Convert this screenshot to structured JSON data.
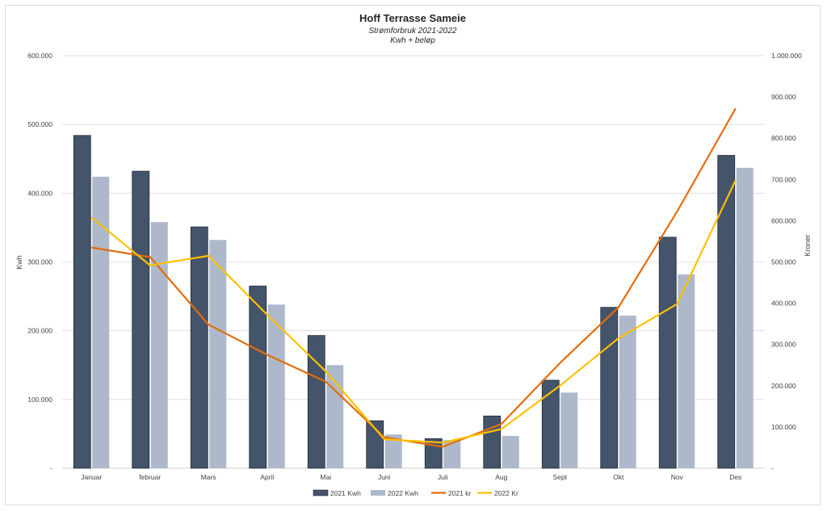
{
  "chart_data": {
    "type": "bar",
    "title": "Hoff Terrasse Sameie",
    "subtitle1": "Strømforbruk 2021-2022",
    "subtitle2": "Kwh + beløp",
    "ylabel": "Kwh",
    "y2label": "Kroner",
    "ylim": [
      0,
      600000
    ],
    "y2lim": [
      0,
      1000000
    ],
    "yticks": [
      "-",
      "100.000",
      "200.000",
      "300.000",
      "400.000",
      "500.000",
      "600.000"
    ],
    "y2ticks": [
      "-",
      "100.000",
      "200.000",
      "300.000",
      "400.000",
      "500.000",
      "600.000",
      "700.000",
      "800.000",
      "900.000",
      "1.000.000"
    ],
    "categories": [
      "Januar",
      "februar",
      "Mars",
      "April",
      "Mai",
      "Juni",
      "Juli",
      "Aug",
      "Sept",
      "Okt",
      "Nov",
      "Des"
    ],
    "grid": true,
    "legend_position": "bottom",
    "series": [
      {
        "name": "2021 Kwh",
        "type": "bar",
        "axis": "left",
        "color": "#44546a",
        "values": [
          484000,
          432000,
          351000,
          265000,
          193000,
          69000,
          43000,
          76000,
          128000,
          234000,
          336000,
          455000
        ]
      },
      {
        "name": "2022 Kwh",
        "type": "bar",
        "axis": "left",
        "color": "#adb9ca",
        "values": [
          424000,
          358000,
          332000,
          238000,
          150000,
          49000,
          41000,
          47000,
          110000,
          222000,
          282000,
          437000
        ]
      },
      {
        "name": "2021 kr",
        "type": "line",
        "axis": "right",
        "color": "#e46c0a",
        "values": [
          535000,
          512000,
          348000,
          275000,
          210000,
          75000,
          52000,
          107000,
          255000,
          390000,
          622000,
          872000
        ]
      },
      {
        "name": "2022 Kr",
        "type": "line",
        "axis": "right",
        "color": "#ffc000",
        "values": [
          608000,
          492000,
          515000,
          372000,
          235000,
          70000,
          62000,
          95000,
          200000,
          315000,
          398000,
          698000
        ]
      }
    ]
  }
}
